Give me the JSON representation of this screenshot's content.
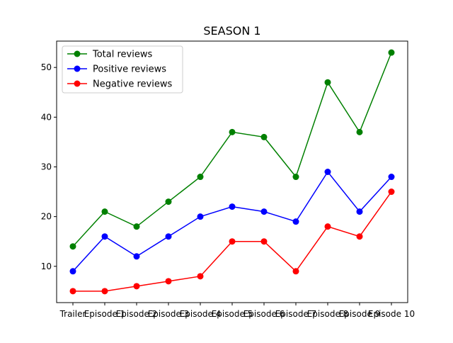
{
  "chart_data": {
    "type": "line",
    "title": "SEASON 1",
    "xlabel": "",
    "ylabel": "",
    "categories": [
      "Trailer",
      "Episode 1",
      "Episode 2",
      "Episode 3",
      "Episode 4",
      "Episode 5",
      "Episode 6",
      "Episode 7",
      "Episode 8",
      "Episode 9",
      "Episode 10"
    ],
    "ylim": [
      2.7,
      55.3
    ],
    "yticks": [
      10,
      20,
      30,
      40,
      50
    ],
    "grid": false,
    "legend_position": "top-left",
    "series": [
      {
        "name": "Total reviews",
        "color": "#008000",
        "values": [
          14,
          21,
          18,
          23,
          28,
          37,
          36,
          28,
          47,
          37,
          53
        ]
      },
      {
        "name": "Positive reviews",
        "color": "#0000ff",
        "values": [
          9,
          16,
          12,
          16,
          20,
          22,
          21,
          19,
          29,
          21,
          28
        ]
      },
      {
        "name": "Negative reviews",
        "color": "#ff0000",
        "values": [
          5,
          5,
          6,
          7,
          8,
          15,
          15,
          9,
          18,
          16,
          25
        ]
      }
    ]
  }
}
